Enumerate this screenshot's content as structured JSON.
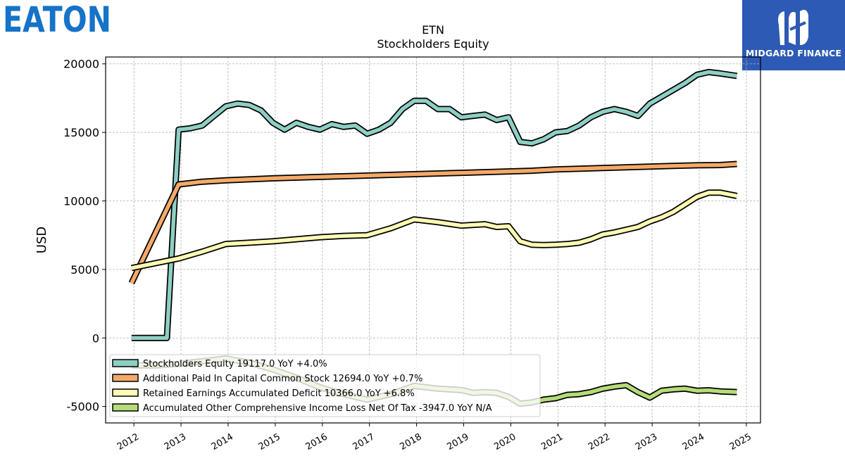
{
  "logo": {
    "text": "EATON",
    "color": "#1573c8"
  },
  "badge": {
    "text": "MIDGARD FINANCE",
    "color": "#2d5ab4"
  },
  "chart_data": {
    "type": "line",
    "title": "ETN",
    "subtitle": "Stockholders  Equity",
    "xlabel": "",
    "ylabel": "USD",
    "xlim": [
      2011.4,
      2025.3
    ],
    "ylim": [
      -6200,
      20500
    ],
    "yticks": [
      -5000,
      0,
      5000,
      10000,
      15000,
      20000
    ],
    "xticks": [
      2012,
      2013,
      2014,
      2015,
      2016,
      2017,
      2018,
      2019,
      2020,
      2021,
      2022,
      2023,
      2024,
      2025
    ],
    "grid": true,
    "legend_position": "lower-left",
    "series": [
      {
        "name": "Stockholders Equity",
        "legend": "Stockholders Equity  19117.0 YoY +4.0%",
        "color": "#8ecfc4",
        "x": [
          2011.95,
          2012.2,
          2012.45,
          2012.7,
          2012.95,
          2013.2,
          2013.45,
          2013.7,
          2013.95,
          2014.2,
          2014.45,
          2014.7,
          2014.95,
          2015.2,
          2015.45,
          2015.7,
          2015.95,
          2016.2,
          2016.45,
          2016.7,
          2016.95,
          2017.2,
          2017.45,
          2017.7,
          2017.95,
          2018.2,
          2018.45,
          2018.7,
          2018.95,
          2019.2,
          2019.45,
          2019.7,
          2019.95,
          2020.2,
          2020.45,
          2020.7,
          2020.95,
          2021.2,
          2021.45,
          2021.7,
          2021.95,
          2022.2,
          2022.45,
          2022.7,
          2022.95,
          2023.2,
          2023.45,
          2023.7,
          2023.95,
          2024.2,
          2024.45,
          2024.8
        ],
        "values": [
          0,
          0,
          0,
          0,
          15200,
          15300,
          15500,
          16200,
          16900,
          17100,
          17000,
          16600,
          15700,
          15200,
          15700,
          15400,
          15200,
          15600,
          15400,
          15500,
          14900,
          15200,
          15700,
          16700,
          17300,
          17300,
          16700,
          16700,
          16100,
          16200,
          16300,
          15900,
          16100,
          14300,
          14200,
          14500,
          15000,
          15100,
          15500,
          16100,
          16500,
          16700,
          16500,
          16200,
          17100,
          17600,
          18100,
          18600,
          19200,
          19400,
          19300,
          19117
        ]
      },
      {
        "name": "Additional Paid In Capital Common Stock",
        "legend": "Additional Paid In Capital Common Stock  12694.0 YoY +0.7%",
        "color": "#f5a968",
        "x": [
          2011.95,
          2012.95,
          2013.45,
          2013.95,
          2014.95,
          2015.95,
          2016.95,
          2017.95,
          2018.95,
          2019.95,
          2020.45,
          2020.95,
          2021.45,
          2021.95,
          2022.45,
          2022.95,
          2023.45,
          2023.95,
          2024.45,
          2024.8
        ],
        "values": [
          4000,
          11200,
          11400,
          11500,
          11650,
          11750,
          11850,
          11950,
          12050,
          12150,
          12200,
          12300,
          12350,
          12400,
          12450,
          12500,
          12550,
          12600,
          12620,
          12694
        ]
      },
      {
        "name": "Retained Earnings Accumulated Deficit",
        "legend": "Retained Earnings Accumulated Deficit  10366.0 YoY +6.8%",
        "color": "#fdfab4",
        "x": [
          2011.95,
          2012.95,
          2013.45,
          2013.95,
          2014.45,
          2014.95,
          2015.45,
          2015.95,
          2016.45,
          2016.95,
          2017.45,
          2017.95,
          2018.45,
          2018.95,
          2019.45,
          2019.7,
          2019.95,
          2020.2,
          2020.45,
          2020.7,
          2020.95,
          2021.2,
          2021.45,
          2021.7,
          2021.95,
          2022.2,
          2022.45,
          2022.7,
          2022.95,
          2023.2,
          2023.45,
          2023.7,
          2023.95,
          2024.2,
          2024.45,
          2024.8
        ],
        "values": [
          5100,
          5800,
          6300,
          6850,
          6950,
          7050,
          7200,
          7350,
          7450,
          7500,
          8000,
          8650,
          8450,
          8200,
          8300,
          8100,
          8150,
          7050,
          6800,
          6780,
          6800,
          6850,
          6950,
          7200,
          7550,
          7700,
          7900,
          8100,
          8500,
          8800,
          9200,
          9750,
          10300,
          10600,
          10600,
          10366
        ]
      },
      {
        "name": "Accumulated Other Comprehensive Income Loss Net Of Tax",
        "legend": "Accumulated Other Comprehensive Income Loss Net Of Tax  -3947.0 YoY N/A",
        "color": "#b5dc78",
        "x": [
          2011.95,
          2012.45,
          2012.95,
          2013.45,
          2013.95,
          2014.45,
          2014.95,
          2015.45,
          2015.95,
          2016.45,
          2016.95,
          2017.45,
          2017.95,
          2018.45,
          2018.95,
          2019.2,
          2019.45,
          2019.7,
          2019.95,
          2020.2,
          2020.45,
          2020.7,
          2020.95,
          2021.2,
          2021.45,
          2021.7,
          2021.95,
          2022.2,
          2022.45,
          2022.7,
          2022.95,
          2023.2,
          2023.45,
          2023.7,
          2023.95,
          2024.2,
          2024.45,
          2024.8
        ],
        "values": [
          -2000,
          -2000,
          -1900,
          -1700,
          -1500,
          -1800,
          -2300,
          -2900,
          -3600,
          -4100,
          -4500,
          -4100,
          -3500,
          -3700,
          -3800,
          -4000,
          -3950,
          -4000,
          -4300,
          -4800,
          -4700,
          -4500,
          -4400,
          -4150,
          -4100,
          -3950,
          -3700,
          -3550,
          -3450,
          -3950,
          -4350,
          -3850,
          -3750,
          -3700,
          -3850,
          -3820,
          -3900,
          -3947
        ]
      }
    ]
  }
}
